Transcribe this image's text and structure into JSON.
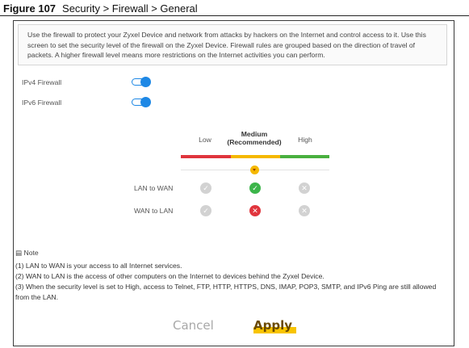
{
  "figure": {
    "label": "Figure 107",
    "title": "Security > Firewall > General"
  },
  "description": "Use the firewall to protect your Zyxel Device and network from attacks by hackers on the Internet and control access to it. Use this screen to set the security level of the firewall on the Zyxel Device. Firewall rules are grouped based on the direction of travel of packets. A higher firewall level means more restrictions on the Internet activities you can perform.",
  "toggles": [
    {
      "label": "IPv4 Firewall",
      "on": true
    },
    {
      "label": "IPv6 Firewall",
      "on": true
    }
  ],
  "levels": {
    "low": "Low",
    "medium": "Medium (Recommended)",
    "high": "High",
    "selected": "Medium",
    "colors": {
      "low": "#e0353d",
      "medium": "#f5b800",
      "high": "#49b03f"
    }
  },
  "matrix": [
    {
      "label": "LAN to WAN",
      "low": "gray-check",
      "medium": "green-check",
      "high": "gray-cross"
    },
    {
      "label": "WAN to LAN",
      "low": "gray-check",
      "medium": "red-cross",
      "high": "gray-cross"
    }
  ],
  "note": {
    "title": "Note",
    "lines": [
      "(1) LAN to WAN is your access to all Internet services.",
      "(2) WAN to LAN is the access of other computers on the Internet to devices behind the Zyxel Device.",
      "(3) When the security level is set to High, access to Telnet, FTP, HTTP, HTTPS, DNS, IMAP, POP3, SMTP, and IPv6 Ping are still allowed from the LAN."
    ]
  },
  "buttons": {
    "cancel": "Cancel",
    "apply": "Apply"
  }
}
